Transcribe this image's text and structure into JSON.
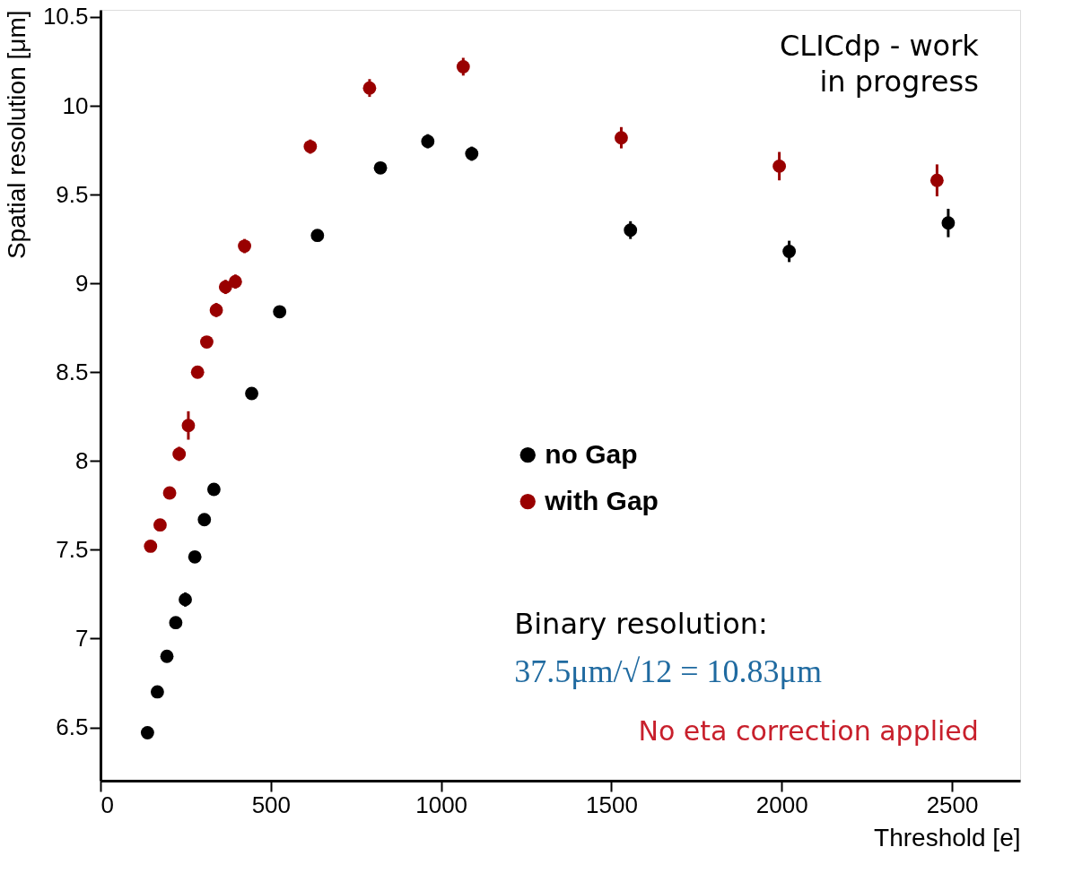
{
  "chart_data": {
    "type": "scatter",
    "xlabel": "Threshold [e]",
    "ylabel": "Spatial resolution [μm]",
    "xlim": [
      0,
      2700
    ],
    "xticks": [
      0,
      500,
      1000,
      1500,
      2000,
      2500
    ],
    "ylim": [
      6.2,
      10.54
    ],
    "yticks": [
      6.5,
      7,
      7.5,
      8,
      8.5,
      9,
      9.5,
      10,
      10.5
    ],
    "grid": false,
    "legend": "right",
    "marker": "circle",
    "series": [
      {
        "name": "no Gap",
        "color": "#000000",
        "x": [
          138,
          167,
          195,
          221,
          249,
          277,
          305,
          333,
          444,
          526,
          637,
          822,
          961,
          1090,
          1556,
          2022,
          2489
        ],
        "values": [
          6.47,
          6.7,
          6.9,
          7.09,
          7.22,
          7.46,
          7.67,
          7.84,
          8.38,
          8.84,
          9.27,
          9.65,
          9.8,
          9.73,
          9.3,
          9.18,
          9.34
        ],
        "errors": [
          0.02,
          0.02,
          0.03,
          0.03,
          0.04,
          0.03,
          0.03,
          0.03,
          0.03,
          0.03,
          0.03,
          0.03,
          0.04,
          0.04,
          0.05,
          0.06,
          0.08
        ]
      },
      {
        "name": "with Gap",
        "color": "#990000",
        "x": [
          147,
          175,
          203,
          231,
          258,
          285,
          312,
          340,
          367,
          396,
          423,
          616,
          790,
          1065,
          1529,
          1993,
          2456
        ],
        "values": [
          7.52,
          7.64,
          7.82,
          8.04,
          8.2,
          8.5,
          8.67,
          8.85,
          8.98,
          9.01,
          9.21,
          9.77,
          10.1,
          10.22,
          9.82,
          9.66,
          9.58
        ],
        "errors": [
          0.03,
          0.03,
          0.03,
          0.04,
          0.08,
          0.03,
          0.03,
          0.04,
          0.04,
          0.04,
          0.04,
          0.04,
          0.05,
          0.05,
          0.06,
          0.08,
          0.09
        ]
      }
    ],
    "annotations": [
      "CLICdp - work\nin progress",
      "Binary resolution:",
      "37.5μm/√12 = 10.83μm",
      "No eta correction applied"
    ]
  }
}
